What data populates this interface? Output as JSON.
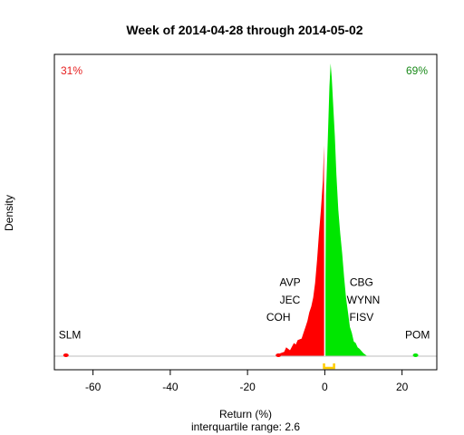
{
  "chart_data": {
    "type": "area",
    "title": "Week of 2014-04-28 through 2014-05-02",
    "xlabel": "Return (%)",
    "ylabel": "Density",
    "subtitle": "interquartile range: 2.6",
    "xlim": [
      -70,
      29
    ],
    "ylim": [
      0,
      1
    ],
    "x_ticks": [
      {
        "value": -60,
        "label": "-60"
      },
      {
        "value": -40,
        "label": "-40"
      },
      {
        "value": -20,
        "label": "-20"
      },
      {
        "value": 0,
        "label": "0"
      },
      {
        "value": 20,
        "label": "20"
      }
    ],
    "grid": false,
    "colors": {
      "negative": "#ff0000",
      "positive": "#00e600",
      "iqr": "#ffcc00",
      "baseline": "#bebebe"
    },
    "share_labels": {
      "negative": {
        "text": "31%",
        "color": "#e62020"
      },
      "positive": {
        "text": "69%",
        "color": "#1a8a1a"
      }
    },
    "density": {
      "x": [
        -13,
        -11.5,
        -10.5,
        -10,
        -9,
        -8,
        -7.5,
        -7,
        -6,
        -5.5,
        -5,
        -4.5,
        -4,
        -3.5,
        -3,
        -2.5,
        -2,
        -1.5,
        -1,
        -0.5,
        -0.2,
        0,
        0.3,
        0.8,
        1.2,
        1.5,
        1.8,
        2.2,
        2.6,
        3,
        3.5,
        4,
        4.5,
        5,
        5.5,
        6,
        6.5,
        7,
        7.5,
        8,
        8.5,
        9,
        10,
        11
      ],
      "y": [
        0,
        0.01,
        0.015,
        0.03,
        0.02,
        0.045,
        0.04,
        0.055,
        0.06,
        0.08,
        0.1,
        0.12,
        0.15,
        0.17,
        0.2,
        0.25,
        0.33,
        0.42,
        0.5,
        0.6,
        0.72,
        0.0,
        0.55,
        0.75,
        0.92,
        1.0,
        0.95,
        0.85,
        0.75,
        0.62,
        0.5,
        0.42,
        0.35,
        0.27,
        0.2,
        0.15,
        0.1,
        0.08,
        0.05,
        0.045,
        0.03,
        0.025,
        0.01,
        0
      ]
    },
    "outliers": [
      {
        "x": -67,
        "y": 0.005,
        "side": "negative"
      },
      {
        "x": -12,
        "y": 0.005,
        "side": "negative"
      },
      {
        "x": 23.5,
        "y": 0.005,
        "side": "positive"
      }
    ],
    "annotations": [
      {
        "text": "SLM",
        "x": -66,
        "y": 0.06
      },
      {
        "text": "COH",
        "x": -12,
        "y": 0.12
      },
      {
        "text": "JEC",
        "x": -9,
        "y": 0.18
      },
      {
        "text": "AVP",
        "x": -9,
        "y": 0.24
      },
      {
        "text": "FISV",
        "x": 9.5,
        "y": 0.12
      },
      {
        "text": "WYNN",
        "x": 10,
        "y": 0.18
      },
      {
        "text": "CBG",
        "x": 9.5,
        "y": 0.24
      },
      {
        "text": "POM",
        "x": 24,
        "y": 0.06
      }
    ],
    "iqr": [
      -0.2,
      2.4
    ]
  }
}
